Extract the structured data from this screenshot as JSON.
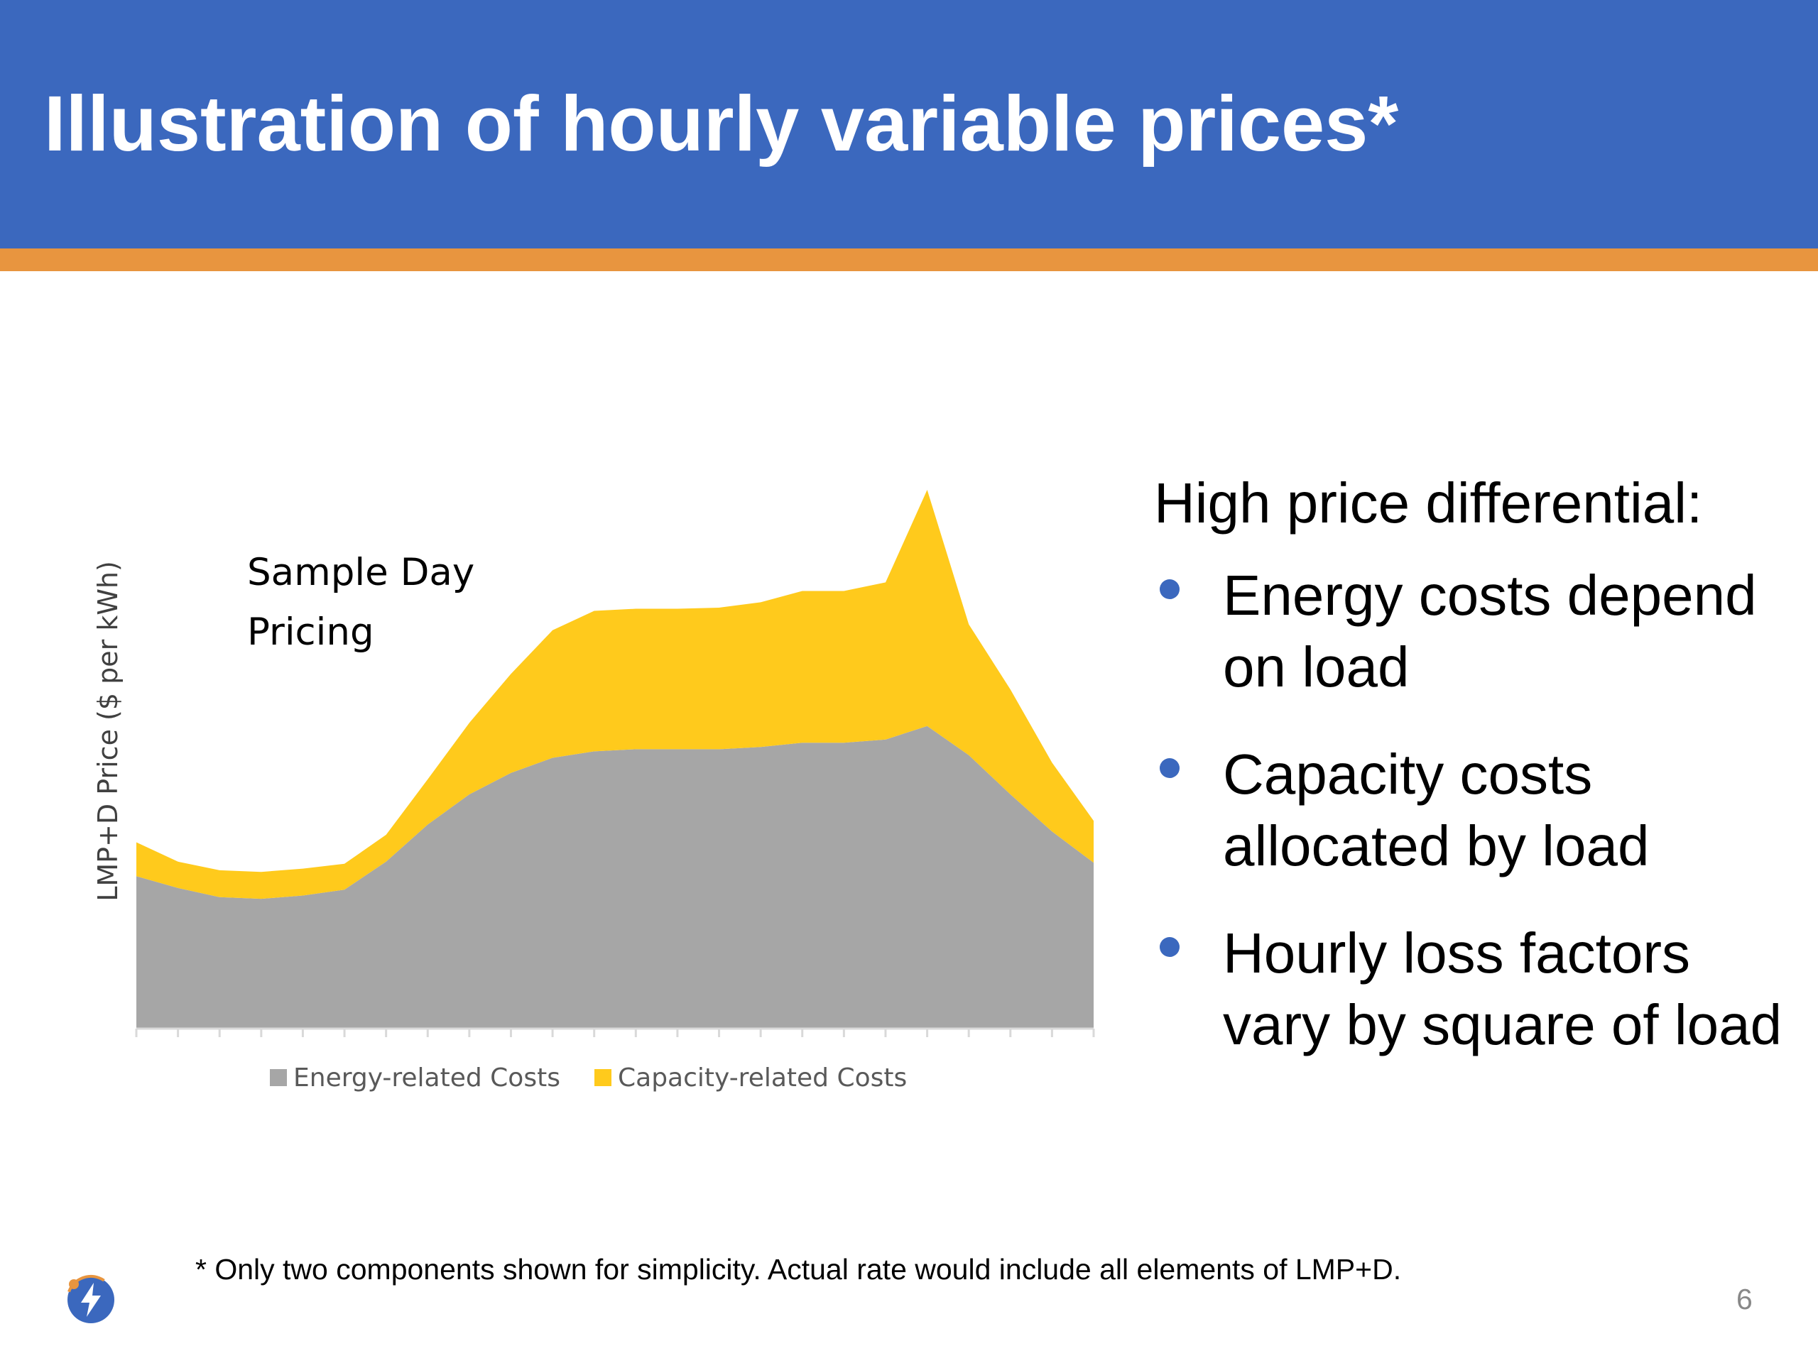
{
  "slide": {
    "title": "Illustration of hourly variable prices*",
    "page_number": "6",
    "footnote": "* Only two components shown for simplicity. Actual rate would include all elements of LMP+D."
  },
  "side_panel": {
    "heading": "High price differential:",
    "bullets": [
      "Energy costs depend on load",
      "Capacity costs allocated by load",
      "Hourly loss factors vary by square of load"
    ]
  },
  "colors": {
    "title_bar": "#3B68BE",
    "accent_stripe": "#E8953F",
    "energy": "#A6A6A6",
    "capacity": "#FFCA1C",
    "bullet": "#3B68BE"
  },
  "logo": {
    "icon": "lightning-bolt-icon"
  },
  "chart_data": {
    "type": "area",
    "stacked": true,
    "title_lines": [
      "Sample Day",
      "Pricing"
    ],
    "xlabel": "",
    "ylabel": "LMP+D Price ($ per kWh)",
    "x": [
      1,
      2,
      3,
      4,
      5,
      6,
      7,
      8,
      9,
      10,
      11,
      12,
      13,
      14,
      15,
      16,
      17,
      18,
      19,
      20,
      21,
      22,
      23,
      24
    ],
    "xlim": [
      1,
      24
    ],
    "ylim": [
      0,
      100
    ],
    "grid": false,
    "show_tick_labels": false,
    "legend_position": "bottom",
    "series": [
      {
        "name": "Energy-related Costs",
        "color": "#A6A6A6",
        "values": [
          28.2,
          26.0,
          24.3,
          24.0,
          24.6,
          25.7,
          30.9,
          37.8,
          43.4,
          47.4,
          50.2,
          51.4,
          51.8,
          51.8,
          51.8,
          52.2,
          53.0,
          53.0,
          53.6,
          56.1,
          50.7,
          43.4,
          36.5,
          30.7
        ],
        "stacked_total": false
      },
      {
        "name": "Capacity-related Costs",
        "color": "#FFCA1C",
        "values": [
          6.3,
          4.9,
          5.0,
          5.0,
          5.0,
          4.8,
          5.0,
          8.4,
          13.3,
          18.4,
          23.7,
          26.1,
          26.1,
          26.1,
          26.3,
          26.9,
          28.2,
          28.2,
          29.2,
          43.9,
          24.3,
          19.5,
          12.8,
          7.8
        ],
        "stacked_total": false
      }
    ]
  }
}
